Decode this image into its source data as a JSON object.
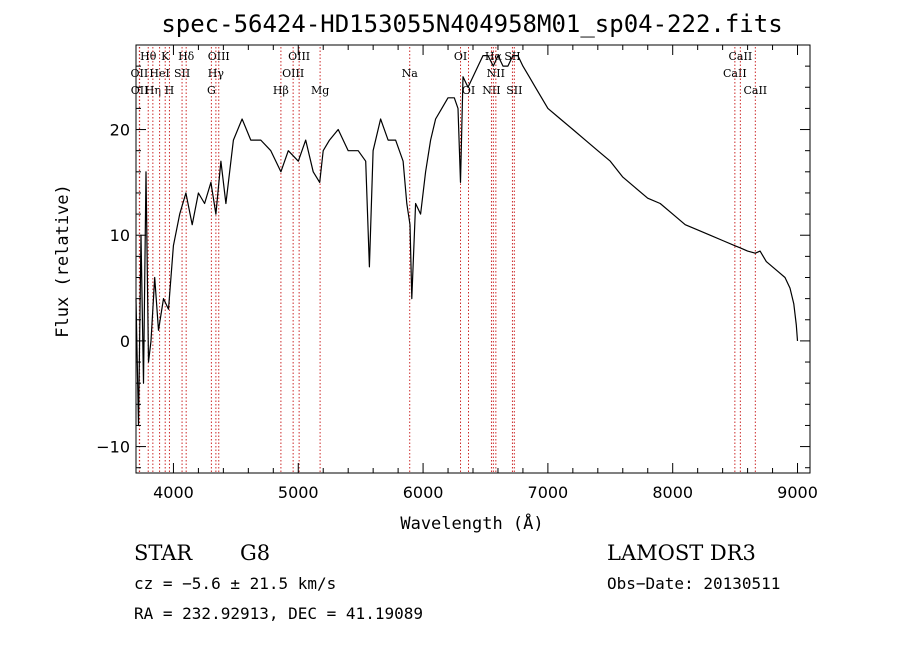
{
  "chart_data": {
    "type": "line",
    "title": "spec-56424-HD153055N404958M01_sp04-222.fits",
    "xlabel": "Wavelength (Å)",
    "ylabel": "Flux (relative)",
    "xlim": [
      3700,
      9100
    ],
    "ylim": [
      -12.5,
      28
    ],
    "xticks": [
      4000,
      5000,
      6000,
      7000,
      8000,
      9000
    ],
    "yticks": [
      -10,
      0,
      10,
      20
    ],
    "grid": false,
    "series": [
      {
        "name": "flux",
        "x": [
          3700,
          3720,
          3740,
          3760,
          3780,
          3800,
          3820,
          3850,
          3880,
          3920,
          3960,
          4000,
          4050,
          4100,
          4150,
          4200,
          4250,
          4300,
          4340,
          4380,
          4420,
          4480,
          4550,
          4620,
          4700,
          4780,
          4861,
          4920,
          5000,
          5060,
          5120,
          5172,
          5200,
          5250,
          5320,
          5400,
          5480,
          5540,
          5570,
          5600,
          5660,
          5720,
          5780,
          5840,
          5870,
          5895,
          5910,
          5940,
          5980,
          6020,
          6060,
          6100,
          6150,
          6200,
          6250,
          6280,
          6300,
          6320,
          6360,
          6400,
          6440,
          6480,
          6520,
          6563,
          6600,
          6640,
          6680,
          6720,
          6760,
          6800,
          6850,
          6900,
          7000,
          7100,
          7200,
          7300,
          7400,
          7500,
          7600,
          7700,
          7800,
          7900,
          8000,
          8100,
          8200,
          8300,
          8400,
          8500,
          8542,
          8600,
          8662,
          8700,
          8750,
          8800,
          8850,
          8900,
          8940,
          8970,
          8990,
          9000
        ],
        "y": [
          4,
          -8,
          10,
          -4,
          16,
          -2,
          0,
          6,
          1,
          4,
          3,
          9,
          12,
          14,
          11,
          14,
          13,
          15,
          12,
          17,
          13,
          19,
          21,
          19,
          19,
          18,
          16,
          18,
          17,
          19,
          16,
          15,
          18,
          19,
          20,
          18,
          18,
          17,
          7,
          18,
          21,
          19,
          19,
          17,
          13,
          11,
          4,
          13,
          12,
          16,
          19,
          21,
          22,
          23,
          23,
          22,
          15,
          25,
          24,
          25,
          26,
          27,
          27,
          26,
          27,
          26,
          26,
          27,
          27,
          26,
          25,
          24,
          22,
          21,
          20,
          19,
          18,
          17,
          15.5,
          14.5,
          13.5,
          13,
          12,
          11,
          10.5,
          10,
          9.5,
          9,
          8.8,
          8.5,
          8.3,
          8.5,
          7.5,
          7,
          6.5,
          6,
          5,
          3.5,
          1.5,
          0
        ]
      }
    ],
    "lines": [
      {
        "label": "Hθ",
        "x": 3798,
        "row": 0
      },
      {
        "label": "OII",
        "x": 3727,
        "row": 1
      },
      {
        "label": "OII",
        "x": 3729,
        "row": 2
      },
      {
        "label": "Hη",
        "x": 3835,
        "row": 2
      },
      {
        "label": "HeI",
        "x": 3889,
        "row": 1
      },
      {
        "label": "K",
        "x": 3934,
        "row": 0
      },
      {
        "label": "H",
        "x": 3968,
        "row": 2
      },
      {
        "label": "SII",
        "x": 4069,
        "row": 1
      },
      {
        "label": "Hδ",
        "x": 4102,
        "row": 0
      },
      {
        "label": "OIII",
        "x": 4363,
        "row": 0
      },
      {
        "label": "Hγ",
        "x": 4340,
        "row": 1
      },
      {
        "label": "G",
        "x": 4304,
        "row": 2
      },
      {
        "label": "Hβ",
        "x": 4861,
        "row": 2
      },
      {
        "label": "OIII",
        "x": 4959,
        "row": 1
      },
      {
        "label": "OIII",
        "x": 5007,
        "row": 0
      },
      {
        "label": "Mg",
        "x": 5175,
        "row": 2
      },
      {
        "label": "Na",
        "x": 5893,
        "row": 1
      },
      {
        "label": "OI",
        "x": 6300,
        "row": 0
      },
      {
        "label": "OI",
        "x": 6364,
        "row": 2
      },
      {
        "label": "NII",
        "x": 6548,
        "row": 2
      },
      {
        "label": "Hα",
        "x": 6563,
        "row": 0
      },
      {
        "label": "NII",
        "x": 6583,
        "row": 1
      },
      {
        "label": "SII",
        "x": 6716,
        "row": 0
      },
      {
        "label": "SII",
        "x": 6731,
        "row": 2
      },
      {
        "label": "CaII",
        "x": 8498,
        "row": 1
      },
      {
        "label": "CaII",
        "x": 8542,
        "row": 0
      },
      {
        "label": "CaII",
        "x": 8662,
        "row": 2
      }
    ]
  },
  "info": {
    "class_label": "STAR",
    "subclass": "G8",
    "survey": "LAMOST DR3",
    "cz": "cz = −5.6 ± 21.5 km/s",
    "obs_date": "Obs−Date: 20130511",
    "coords": "RA = 232.92913, DEC =  41.19089"
  }
}
